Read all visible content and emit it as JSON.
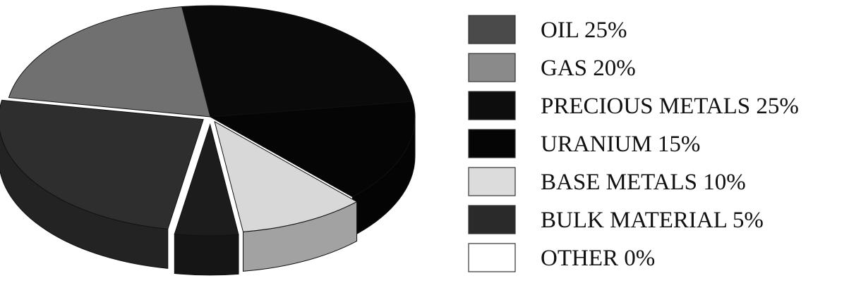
{
  "chart_data": {
    "type": "pie",
    "style": "3d-exploded",
    "title": "",
    "legend_position": "right",
    "slices": [
      {
        "label": "OIL 25%",
        "category": "OIL",
        "value": 25,
        "color": "#2e2e2e"
      },
      {
        "label": "GAS 20%",
        "category": "GAS",
        "value": 20,
        "color": "#707070"
      },
      {
        "label": "PRECIOUS METALS 25%",
        "category": "PRECIOUS METALS",
        "value": 25,
        "color": "#0a0a0a"
      },
      {
        "label": "URANIUM 15%",
        "category": "URANIUM",
        "value": 15,
        "color": "#050505"
      },
      {
        "label": "BASE METALS 10%",
        "category": "BASE METALS",
        "value": 10,
        "color": "#d8d8d8"
      },
      {
        "label": "BULK MATERIAL 5%",
        "category": "BULK MATERIAL",
        "value": 5,
        "color": "#1c1c1c"
      },
      {
        "label": "OTHER 0%",
        "category": "OTHER",
        "value": 0,
        "color": "#ffffff"
      }
    ],
    "legend": [
      {
        "label": "OIL 25%",
        "color": "#4a4a4a"
      },
      {
        "label": "GAS 20%",
        "color": "#8a8a8a"
      },
      {
        "label": "PRECIOUS METALS 25%",
        "color": "#0d0d0d"
      },
      {
        "label": "URANIUM 15%",
        "color": "#050505"
      },
      {
        "label": "BASE METALS 10%",
        "color": "#dcdcdc"
      },
      {
        "label": "BULK MATERIAL 5%",
        "color": "#2a2a2a"
      },
      {
        "label": "OTHER 0%",
        "color": "#ffffff"
      }
    ]
  }
}
